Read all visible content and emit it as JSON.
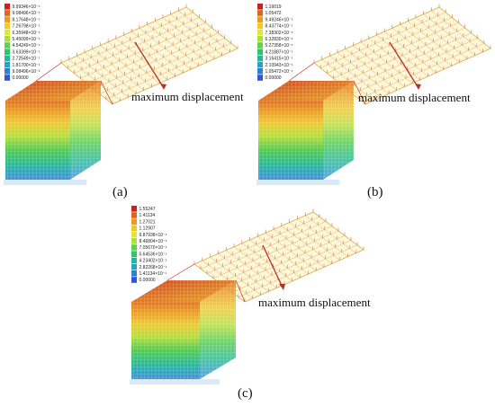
{
  "colors": {
    "scale": [
      "#cc1f1f",
      "#e0641c",
      "#ee9a1f",
      "#f2c92b",
      "#e3e72e",
      "#a9e03a",
      "#5fd24a",
      "#2fc56c",
      "#23b89b",
      "#2aa2c6",
      "#2f7fd8",
      "#2f55d8"
    ],
    "annotation_line": "#b8322a",
    "plate_grid": "#d6b24a",
    "plate_tick": "#c53b2a"
  },
  "panels": [
    {
      "id": "a",
      "caption": "(a)",
      "annotation": "maximum displacement",
      "legend_values": [
        "9.99346×10⁻¹",
        "9.08496×10⁻¹",
        "8.17648×10⁻¹",
        "7.26798×10⁻¹",
        "6.35948×10⁻¹",
        "5.45099×10⁻¹",
        "4.54249×10⁻¹",
        "3.63399×10⁻¹",
        "2.72549×10⁻¹",
        "1.81700×10⁻¹",
        "9.08496×10⁻²",
        "0.00000"
      ]
    },
    {
      "id": "b",
      "caption": "(b)",
      "annotation": "maximum displacement",
      "legend_values": [
        "1.16019",
        "1.05472",
        "9.49246×10⁻¹",
        "8.43774×10⁻¹",
        "7.38302×10⁻¹",
        "6.32830×10⁻¹",
        "5.27358×10⁻¹",
        "4.21887×10⁻¹",
        "3.16415×10⁻¹",
        "2.10943×10⁻¹",
        "1.05472×10⁻¹",
        "0.00000"
      ]
    },
    {
      "id": "c",
      "caption": "(c)",
      "annotation": "maximum displacement",
      "legend_values": [
        "1.55247",
        "1.41134",
        "1.27021",
        "1.12907",
        "9.87938×10⁻¹",
        "8.46804×10⁻¹",
        "7.05670×10⁻¹",
        "5.64536×10⁻¹",
        "4.23402×10⁻¹",
        "2.82268×10⁻¹",
        "1.41134×10⁻¹",
        "0.00000"
      ]
    }
  ]
}
